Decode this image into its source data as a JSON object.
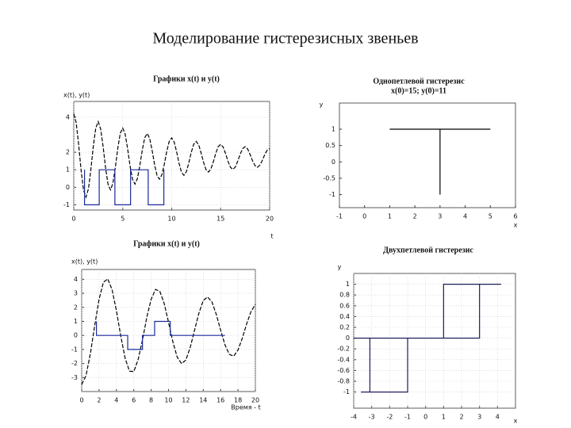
{
  "title": "Моделирование гистерезисных звеньев",
  "chart_data": [
    {
      "type": "line",
      "title": "Графики x(t) и y(t)",
      "y_label": "x(t), y(t)",
      "x_label": "t",
      "xlim": [
        0,
        20
      ],
      "ylim": [
        -1.3,
        4.9
      ],
      "xticks": [
        0,
        5,
        10,
        15,
        20
      ],
      "yticks": [
        -1,
        0,
        1,
        2,
        4
      ],
      "grid": true,
      "series": [
        {
          "color": "#000000",
          "dash": true,
          "x": [
            0,
            0.25,
            0.5,
            0.75,
            1,
            1.25,
            1.5,
            1.75,
            2,
            2.25,
            2.5,
            2.75,
            3,
            3.25,
            3.5,
            3.75,
            4,
            4.25,
            4.5,
            4.75,
            5,
            5.25,
            5.5,
            5.75,
            6,
            6.25,
            6.5,
            6.75,
            7,
            7.25,
            7.5,
            7.75,
            8,
            8.25,
            8.5,
            8.75,
            9,
            9.25,
            9.5,
            9.75,
            10,
            10.25,
            10.5,
            10.75,
            11,
            11.25,
            11.5,
            11.75,
            12,
            12.25,
            12.5,
            12.75,
            13,
            13.25,
            13.5,
            13.75,
            14,
            14.25,
            14.5,
            14.75,
            15,
            15.25,
            15.5,
            15.75,
            16,
            16.25,
            16.5,
            16.75,
            17,
            17.25,
            17.5,
            17.75,
            18,
            18.25,
            18.5,
            18.75,
            19,
            19.25,
            19.5,
            19.75,
            20
          ],
          "values": [
            4.2,
            3.68,
            2.44,
            0.97,
            -0.17,
            -0.56,
            -0.09,
            1.03,
            2.36,
            3.39,
            3.75,
            3.32,
            2.31,
            1.1,
            0.17,
            -0.15,
            0.23,
            1.15,
            2.24,
            3.08,
            3.38,
            3.03,
            2.2,
            1.21,
            0.45,
            0.18,
            0.5,
            1.25,
            2.14,
            2.83,
            3.07,
            2.79,
            2.11,
            1.3,
            0.68,
            0.46,
            0.72,
            1.33,
            2.06,
            2.63,
            2.82,
            2.59,
            2.03,
            1.37,
            0.86,
            0.68,
            0.89,
            1.4,
            2.0,
            2.46,
            2.62,
            2.43,
            1.97,
            1.43,
            1.01,
            0.87,
            1.04,
            1.45,
            1.94,
            2.32,
            2.45,
            2.3,
            1.92,
            1.48,
            1.14,
            1.02,
            1.16,
            1.5,
            1.9,
            2.21,
            2.32,
            2.19,
            1.88,
            1.52,
            1.24,
            1.14,
            1.26,
            1.53,
            1.86,
            2.12,
            2.21
          ]
        },
        {
          "color": "#1a2a9c",
          "dash": false,
          "x": [
            1.1,
            1.1,
            2.6,
            2.6,
            4.2,
            4.2,
            5.8,
            5.8,
            7.6,
            7.6,
            9.2,
            9.2
          ],
          "values": [
            1,
            -1,
            -1,
            1,
            1,
            -1,
            -1,
            1,
            1,
            -1,
            -1,
            1
          ]
        }
      ]
    },
    {
      "type": "line",
      "title": "Однопетлевой гистерезис",
      "subtitle": "x(0)=15; y(0)=11",
      "y_label": "y",
      "x_label": "x",
      "xlim": [
        -1,
        6
      ],
      "ylim": [
        -1.4,
        1.8
      ],
      "xticks": [
        -1,
        0,
        1,
        2,
        3,
        4,
        5,
        6
      ],
      "yticks": [
        -1,
        -0.5,
        0,
        0.5,
        1
      ],
      "grid": false,
      "series": [
        {
          "color": "#000000",
          "dash": false,
          "x": [
            1,
            3,
            3,
            3,
            5
          ],
          "values": [
            1,
            1,
            -1,
            1,
            1
          ]
        }
      ]
    },
    {
      "type": "line",
      "title": "Графики x(t) и y(t)",
      "y_label": "x(t), y(t)",
      "x_label": "Время - t",
      "xlim": [
        0,
        20
      ],
      "ylim": [
        -4,
        4.7
      ],
      "xticks": [
        0,
        2,
        4,
        6,
        8,
        10,
        12,
        14,
        16,
        18,
        20
      ],
      "yticks": [
        -3,
        -2,
        -1,
        0,
        1,
        2,
        3,
        4
      ],
      "grid": true,
      "series": [
        {
          "color": "#000000",
          "dash": true,
          "x": [
            0,
            0.5,
            1,
            1.5,
            2,
            2.5,
            3,
            3.5,
            4,
            4.5,
            5,
            5.5,
            6,
            6.5,
            7,
            7.5,
            8,
            8.5,
            9,
            9.5,
            10,
            10.5,
            11,
            11.5,
            12,
            12.5,
            13,
            13.5,
            14,
            14.5,
            15,
            15.5,
            16,
            16.5,
            17,
            17.5,
            18,
            18.5,
            19,
            19.5,
            20
          ],
          "values": [
            -3.5,
            -2.86,
            -1.3,
            0.7,
            2.57,
            3.79,
            4.03,
            3.26,
            1.76,
            -0.04,
            -1.62,
            -2.54,
            -2.58,
            -1.72,
            -0.33,
            1.3,
            2.58,
            3.28,
            3.14,
            2.28,
            0.94,
            -0.46,
            -1.55,
            -2.01,
            -1.75,
            -0.85,
            0.38,
            1.59,
            2.49,
            2.74,
            2.39,
            1.5,
            0.38,
            -0.67,
            -1.35,
            -1.48,
            -1.04,
            -0.19,
            0.83,
            1.7,
            2.21
          ]
        },
        {
          "color": "#1a2a9c",
          "dash": false,
          "x": [
            1.7,
            1.7,
            5.3,
            5.3,
            7,
            7,
            8.4,
            8.4,
            10.2,
            10.2,
            16.5
          ],
          "values": [
            1,
            0,
            0,
            -1,
            -1,
            0,
            0,
            1,
            1,
            0,
            0
          ]
        }
      ]
    },
    {
      "type": "line",
      "title": "Двухпетлевой гистерезис",
      "y_label": "y",
      "x_label": "x",
      "xlim": [
        -4,
        5
      ],
      "ylim": [
        -1.3,
        1.2
      ],
      "xticks": [
        -4,
        -3,
        -2,
        -1,
        0,
        1,
        2,
        3,
        4
      ],
      "yticks": [
        -1,
        -0.8,
        -0.6,
        -0.4,
        -0.2,
        0,
        0.2,
        0.4,
        0.6,
        0.8,
        1
      ],
      "grid": true,
      "series": [
        {
          "color": "#1c1c5a",
          "dash": false,
          "x": [
            -3.6,
            -1,
            -1,
            null,
            -3.1,
            -3.1,
            null,
            -4,
            3,
            3,
            4.2,
            null,
            1,
            1,
            3
          ],
          "values": [
            -1,
            -1,
            0,
            null,
            0,
            -1,
            null,
            0,
            0,
            1,
            1,
            null,
            0,
            1,
            1
          ]
        }
      ]
    }
  ]
}
